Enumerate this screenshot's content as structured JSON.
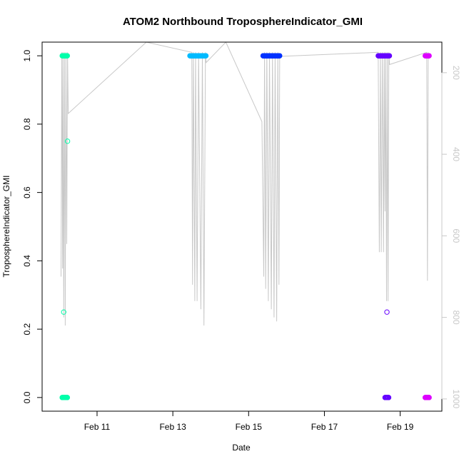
{
  "chart_data": {
    "type": "scatter",
    "title": "ATOM2 Northbound TroposphereIndicator_GMI",
    "xlabel": "Date",
    "ylabel": "TroposphereIndicator_GMI",
    "x_ticks": [
      "Feb 11",
      "Feb 13",
      "Feb 15",
      "Feb 17",
      "Feb 19"
    ],
    "x_tick_days": [
      11,
      13,
      15,
      17,
      19
    ],
    "xlim_days": [
      9.55,
      20.1
    ],
    "y_ticks": [
      "0.0",
      "0.2",
      "0.4",
      "0.6",
      "0.8",
      "1.0"
    ],
    "y_tick_values": [
      0.0,
      0.2,
      0.4,
      0.6,
      0.8,
      1.0
    ],
    "ylim": [
      -0.04,
      1.04
    ],
    "right_axis": {
      "ticks": [
        "200",
        "400",
        "600",
        "800",
        "1000"
      ],
      "tick_values": [
        200,
        400,
        600,
        800,
        1000
      ],
      "lim": [
        1030,
        125
      ],
      "color": "#c8c8c8"
    },
    "grid": false,
    "flights": [
      {
        "start": 10.08,
        "end": 10.22,
        "color": "#00ffaa",
        "ones": true,
        "zeros": true,
        "extra": [
          {
            "x": 10.22,
            "y": 0.75
          },
          {
            "x": 10.12,
            "y": 0.25
          }
        ]
      },
      {
        "start": 13.45,
        "end": 13.88,
        "color": "#00bbff",
        "ones": true,
        "zeros": false,
        "extra": []
      },
      {
        "start": 15.38,
        "end": 15.82,
        "color": "#0033ff",
        "ones": true,
        "zeros": false,
        "extra": []
      },
      {
        "start": 18.42,
        "end": 18.72,
        "color": "#6600ff",
        "ones": true,
        "zeros": true,
        "zero_start": 18.6,
        "zero_end": 18.7,
        "extra": [
          {
            "x": 18.65,
            "y": 0.25
          }
        ]
      },
      {
        "start": 19.66,
        "end": 19.77,
        "color": "#dd00ff",
        "ones": true,
        "zeros": true,
        "extra": []
      }
    ],
    "pressure_series": {
      "color": "#c8c8c8",
      "values": [
        {
          "x": 10.05,
          "p": 700
        },
        {
          "x": 10.07,
          "p": 150
        },
        {
          "x": 10.09,
          "p": 680
        },
        {
          "x": 10.1,
          "p": 150
        },
        {
          "x": 10.12,
          "p": 800
        },
        {
          "x": 10.14,
          "p": 150
        },
        {
          "x": 10.16,
          "p": 820
        },
        {
          "x": 10.18,
          "p": 150
        },
        {
          "x": 10.2,
          "p": 620
        },
        {
          "x": 10.22,
          "p": 150
        },
        {
          "x": 10.24,
          "p": 300
        },
        {
          "x": 12.3,
          "p": 125
        },
        {
          "x": 13.5,
          "p": 150
        },
        {
          "x": 13.52,
          "p": 720
        },
        {
          "x": 13.54,
          "p": 150
        },
        {
          "x": 13.58,
          "p": 760
        },
        {
          "x": 13.6,
          "p": 150
        },
        {
          "x": 13.64,
          "p": 760
        },
        {
          "x": 13.68,
          "p": 150
        },
        {
          "x": 13.74,
          "p": 780
        },
        {
          "x": 13.78,
          "p": 150
        },
        {
          "x": 13.82,
          "p": 820
        },
        {
          "x": 13.86,
          "p": 150
        },
        {
          "x": 13.88,
          "p": 175
        },
        {
          "x": 14.4,
          "p": 125
        },
        {
          "x": 15.35,
          "p": 320
        },
        {
          "x": 15.4,
          "p": 700
        },
        {
          "x": 15.42,
          "p": 150
        },
        {
          "x": 15.45,
          "p": 730
        },
        {
          "x": 15.48,
          "p": 150
        },
        {
          "x": 15.52,
          "p": 760
        },
        {
          "x": 15.55,
          "p": 150
        },
        {
          "x": 15.6,
          "p": 780
        },
        {
          "x": 15.63,
          "p": 150
        },
        {
          "x": 15.67,
          "p": 800
        },
        {
          "x": 15.7,
          "p": 150
        },
        {
          "x": 15.74,
          "p": 810
        },
        {
          "x": 15.77,
          "p": 150
        },
        {
          "x": 15.8,
          "p": 720
        },
        {
          "x": 15.82,
          "p": 160
        },
        {
          "x": 18.42,
          "p": 150
        },
        {
          "x": 18.45,
          "p": 640
        },
        {
          "x": 18.48,
          "p": 150
        },
        {
          "x": 18.5,
          "p": 640
        },
        {
          "x": 18.53,
          "p": 150
        },
        {
          "x": 18.56,
          "p": 640
        },
        {
          "x": 18.58,
          "p": 150
        },
        {
          "x": 18.6,
          "p": 540
        },
        {
          "x": 18.62,
          "p": 150
        },
        {
          "x": 18.64,
          "p": 760
        },
        {
          "x": 18.66,
          "p": 150
        },
        {
          "x": 18.68,
          "p": 760
        },
        {
          "x": 18.7,
          "p": 150
        },
        {
          "x": 18.72,
          "p": 180
        },
        {
          "x": 19.7,
          "p": 150
        },
        {
          "x": 19.72,
          "p": 710
        },
        {
          "x": 19.74,
          "p": 150
        }
      ]
    }
  }
}
